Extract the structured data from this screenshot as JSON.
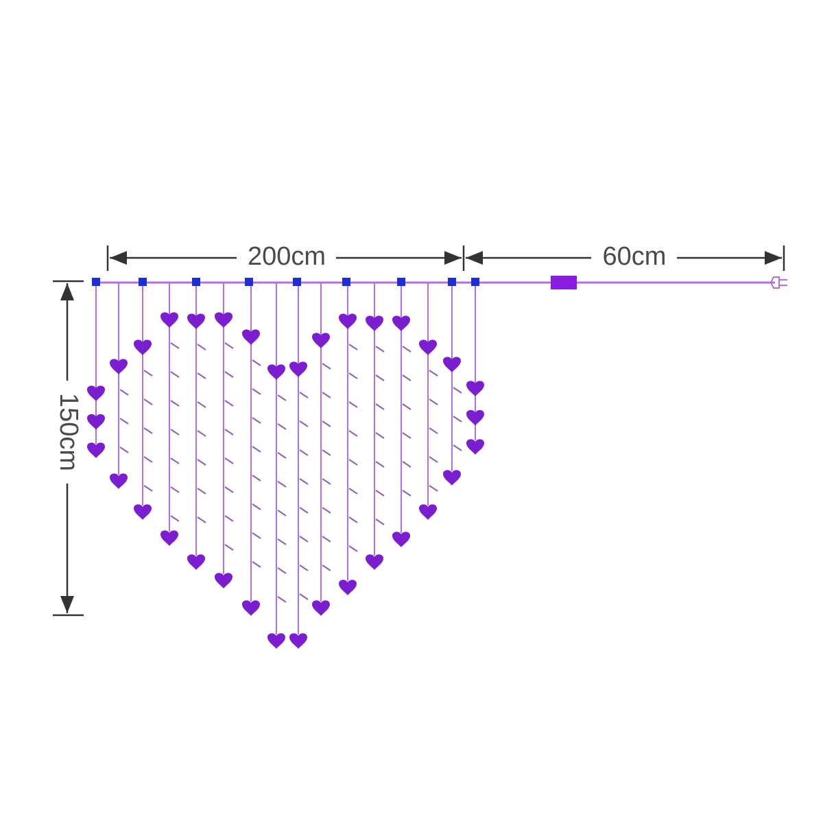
{
  "dimensions": {
    "width": "200cm",
    "cord": "60cm",
    "height": "150cm"
  }
}
